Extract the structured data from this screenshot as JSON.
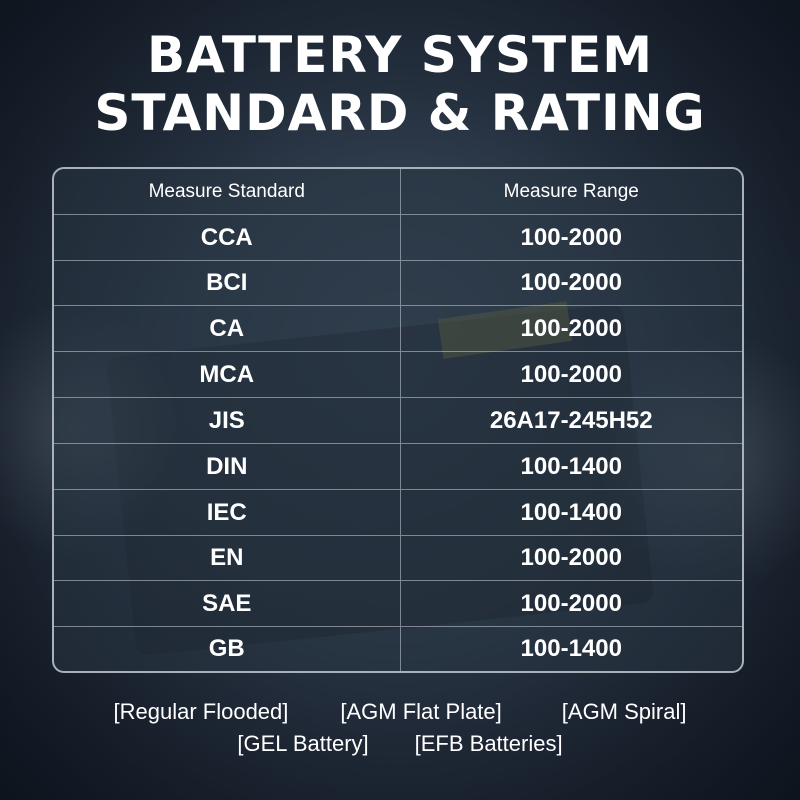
{
  "title": {
    "line1": "BATTERY SYSTEM",
    "line2": "STANDARD & RATING"
  },
  "table": {
    "headers": [
      "Measure Standard",
      "Measure Range"
    ],
    "rows": [
      {
        "standard": "CCA",
        "range": "100-2000"
      },
      {
        "standard": "BCI",
        "range": "100-2000"
      },
      {
        "standard": "CA",
        "range": "100-2000"
      },
      {
        "standard": "MCA",
        "range": "100-2000"
      },
      {
        "standard": "JIS",
        "range": "26A17-245H52"
      },
      {
        "standard": "DIN",
        "range": "100-1400"
      },
      {
        "standard": "IEC",
        "range": "100-1400"
      },
      {
        "standard": "EN",
        "range": "100-2000"
      },
      {
        "standard": "SAE",
        "range": "100-2000"
      },
      {
        "standard": "GB",
        "range": "100-1400"
      }
    ]
  },
  "battery_types": {
    "line1": [
      "[Regular Flooded]",
      "[AGM Flat Plate]",
      "[AGM Spiral]"
    ],
    "line2": [
      "[GEL Battery]",
      "[EFB Batteries]"
    ]
  },
  "colors": {
    "text": "#ffffff",
    "table_border": "#a8b0ba",
    "background": "#2a3646"
  }
}
